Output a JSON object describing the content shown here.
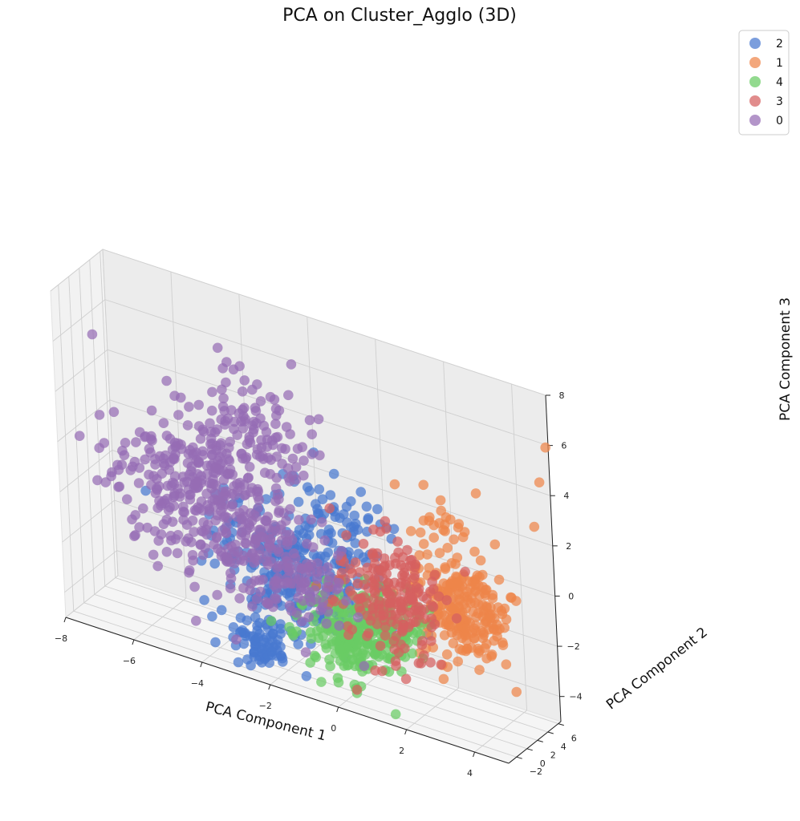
{
  "chart_data": {
    "type": "scatter",
    "projection": "3d",
    "title": "PCA on Cluster_Agglo (3D)",
    "xlabel": "PCA Component 1",
    "ylabel": "PCA Component 2",
    "zlabel": "PCA Component 3",
    "xlim": [
      -8,
      5
    ],
    "ylim": [
      -3.5,
      6.5
    ],
    "zlim": [
      -5,
      8
    ],
    "xticks": [
      -8,
      -6,
      -4,
      -2,
      0,
      2,
      4
    ],
    "yticks": [
      -2,
      0,
      2,
      4,
      6
    ],
    "zticks": [
      -4,
      -2,
      0,
      2,
      4,
      6,
      8
    ],
    "grid": true,
    "legend_position": "top-right",
    "series": [
      {
        "name": "2",
        "color": "#4878d0",
        "approx_regions": [
          {
            "center": [
              -1.8,
              1.0,
              -1.2
            ],
            "spread": [
              1.2,
              1.2,
              1.2
            ],
            "count": 260
          },
          {
            "center": [
              -2.6,
              -1.5,
              -3.8
            ],
            "spread": [
              0.5,
              0.4,
              0.5
            ],
            "count": 80
          },
          {
            "center": [
              -0.8,
              1.5,
              1.2
            ],
            "spread": [
              0.9,
              0.9,
              0.8
            ],
            "count": 60
          }
        ]
      },
      {
        "name": "1",
        "color": "#ee854a",
        "approx_regions": [
          {
            "center": [
              2.8,
              2.6,
              -1.0
            ],
            "spread": [
              0.7,
              1.3,
              1.0
            ],
            "count": 240
          },
          {
            "center": [
              2.3,
              3.6,
              1.8
            ],
            "spread": [
              0.5,
              0.7,
              0.8
            ],
            "count": 30
          },
          {
            "center": [
              4.8,
              4.5,
              3.0
            ],
            "spread": [
              0.0,
              0.0,
              0.0
            ],
            "count": 1
          },
          {
            "center": [
              4.9,
              5.2,
              4.7
            ],
            "spread": [
              0.0,
              0.0,
              0.0
            ],
            "count": 1
          },
          {
            "center": [
              5.0,
              6.0,
              6.0
            ],
            "spread": [
              0.0,
              0.0,
              0.0
            ],
            "count": 1
          }
        ]
      },
      {
        "name": "4",
        "color": "#6acc64",
        "approx_regions": [
          {
            "center": [
              -0.3,
              0.6,
              -3.0
            ],
            "spread": [
              0.6,
              0.5,
              0.8
            ],
            "count": 180
          },
          {
            "center": [
              0.8,
              1.1,
              -2.2
            ],
            "spread": [
              0.5,
              0.5,
              0.8
            ],
            "count": 140
          }
        ]
      },
      {
        "name": "3",
        "color": "#d65f5f",
        "approx_regions": [
          {
            "center": [
              0.9,
              1.6,
              -1.2
            ],
            "spread": [
              0.8,
              1.0,
              1.2
            ],
            "count": 200
          }
        ]
      },
      {
        "name": "0",
        "color": "#956cb4",
        "approx_regions": [
          {
            "center": [
              -4.5,
              1.8,
              0.5
            ],
            "spread": [
              1.3,
              1.4,
              1.6
            ],
            "count": 380
          },
          {
            "center": [
              -2.8,
              2.4,
              4.0
            ],
            "spread": [
              0.8,
              0.9,
              1.2
            ],
            "count": 90
          },
          {
            "center": [
              -2.2,
              1.4,
              -1.5
            ],
            "spread": [
              1.0,
              1.0,
              1.0
            ],
            "count": 120
          }
        ]
      }
    ]
  }
}
